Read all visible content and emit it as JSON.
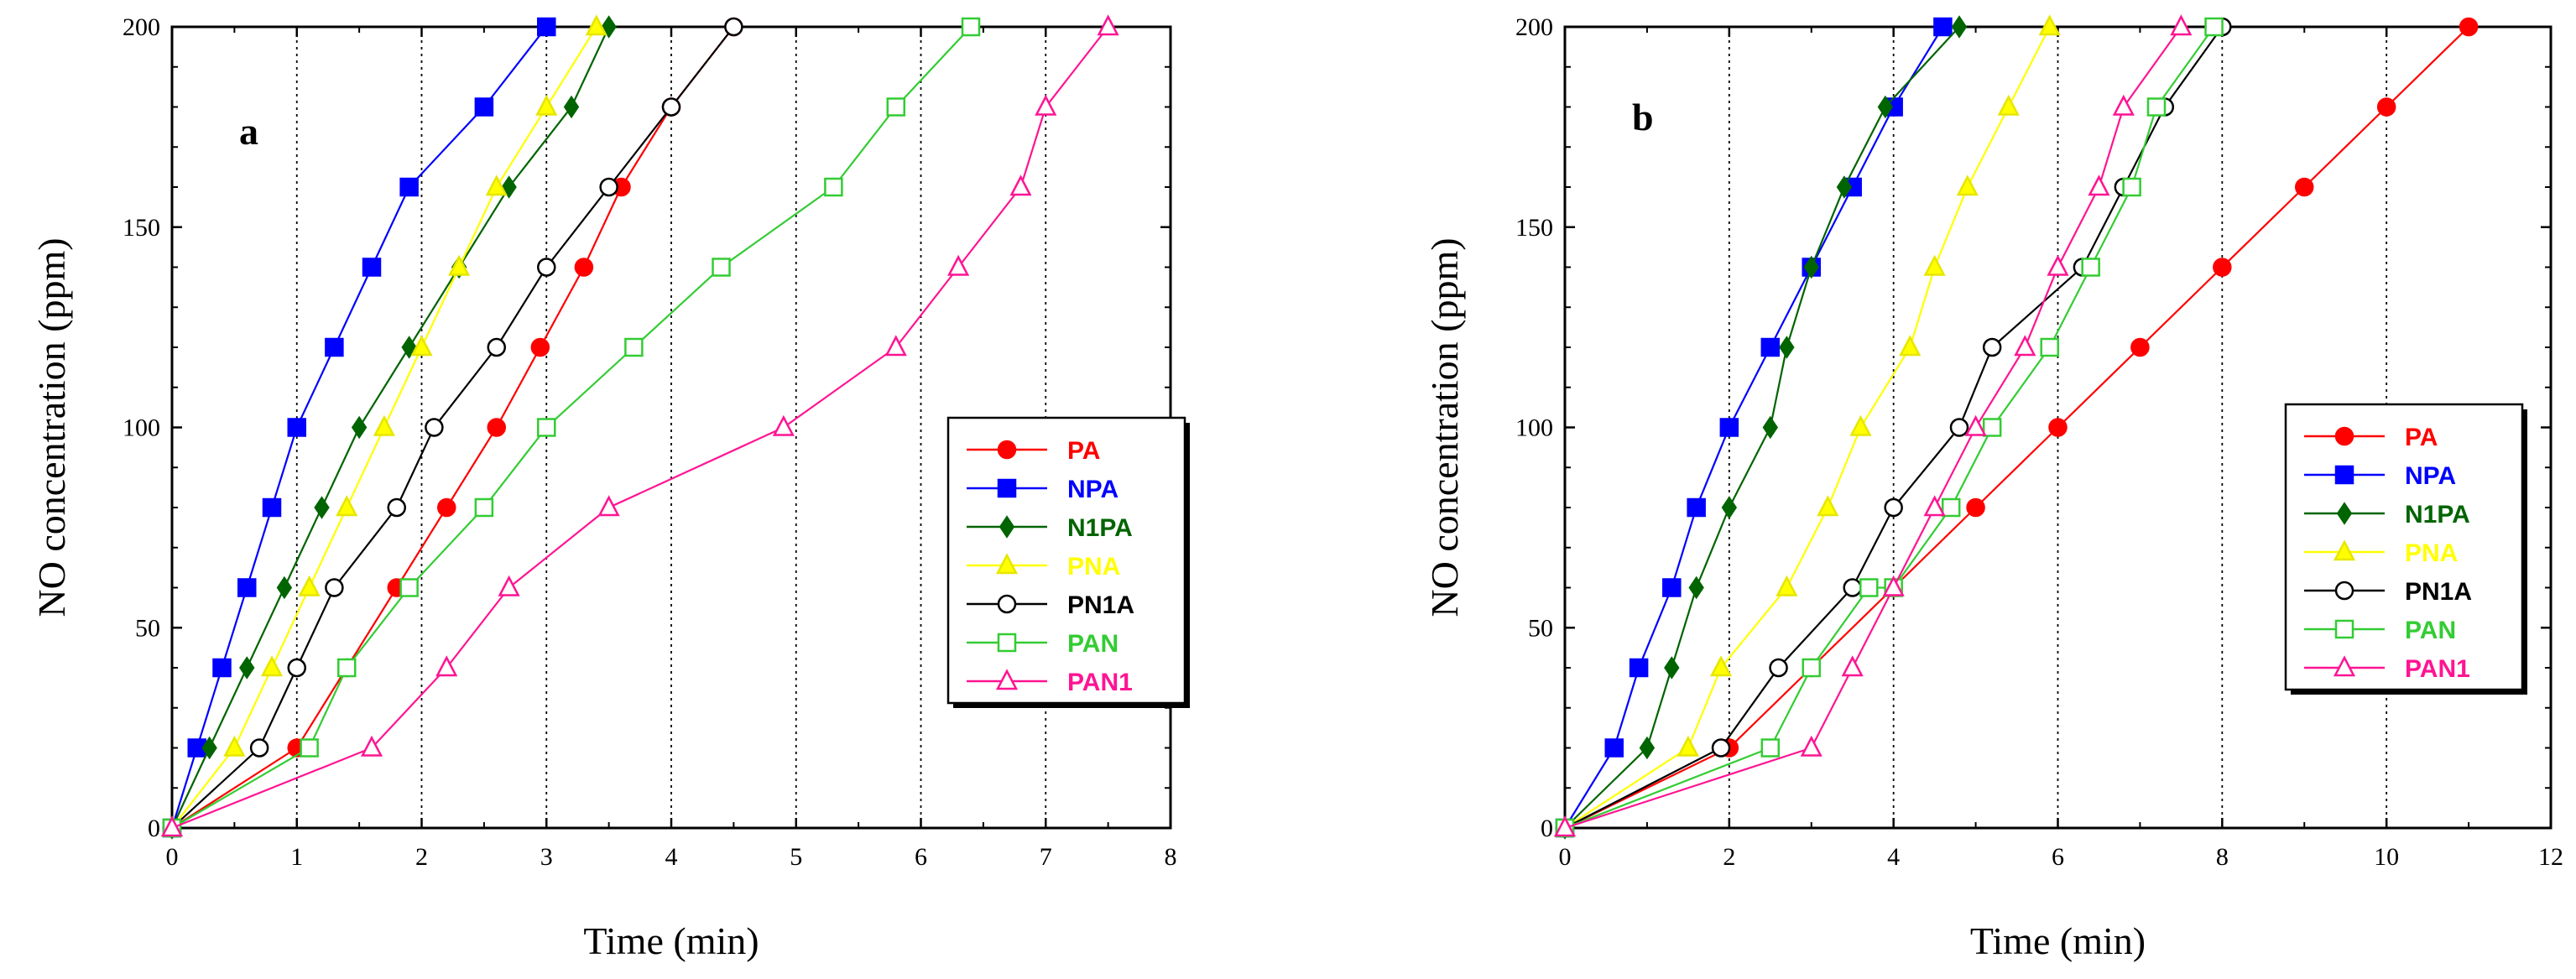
{
  "chart_data": [
    {
      "type": "line",
      "panel_label": "a",
      "xlabel": "Time (min)",
      "ylabel": "NO concentration (ppm)",
      "xlim": [
        0,
        8
      ],
      "ylim": [
        0,
        200
      ],
      "xticks": [
        0,
        1,
        2,
        3,
        4,
        5,
        6,
        7,
        8
      ],
      "yticks": [
        0,
        50,
        100,
        150,
        200
      ],
      "vertical_gridlines": [
        1,
        2,
        3,
        4,
        5,
        6,
        7
      ],
      "legend_position": "right",
      "series": [
        {
          "name": "PA",
          "color": "#ff0000",
          "marker": "filled-circle",
          "x": [
            0,
            1.0,
            1.4,
            1.8,
            2.2,
            2.6,
            2.95,
            3.3,
            3.6,
            4.0,
            4.5
          ],
          "y": [
            0,
            20,
            40,
            60,
            80,
            100,
            120,
            140,
            160,
            180,
            200
          ]
        },
        {
          "name": "NPA",
          "color": "#0000ff",
          "marker": "filled-square",
          "x": [
            0,
            0.2,
            0.4,
            0.6,
            0.8,
            1.0,
            1.3,
            1.6,
            1.9,
            2.5,
            3.0
          ],
          "y": [
            0,
            20,
            40,
            60,
            80,
            100,
            120,
            140,
            160,
            180,
            200
          ]
        },
        {
          "name": "N1PA",
          "color": "#006400",
          "marker": "filled-diamond",
          "x": [
            0,
            0.3,
            0.6,
            0.9,
            1.2,
            1.5,
            1.9,
            2.3,
            2.7,
            3.2,
            3.5
          ],
          "y": [
            0,
            20,
            40,
            60,
            80,
            100,
            120,
            140,
            160,
            180,
            200
          ]
        },
        {
          "name": "PNA",
          "color": "#ffff00",
          "marker": "filled-triangle",
          "x": [
            0,
            0.5,
            0.8,
            1.1,
            1.4,
            1.7,
            2.0,
            2.3,
            2.6,
            3.0,
            3.4
          ],
          "y": [
            0,
            20,
            40,
            60,
            80,
            100,
            120,
            140,
            160,
            180,
            200
          ]
        },
        {
          "name": "PN1A",
          "color": "#000000",
          "marker": "open-circle",
          "x": [
            0,
            0.7,
            1.0,
            1.3,
            1.8,
            2.1,
            2.6,
            3.0,
            3.5,
            4.0,
            4.5
          ],
          "y": [
            0,
            20,
            40,
            60,
            80,
            100,
            120,
            140,
            160,
            180,
            200
          ]
        },
        {
          "name": "PAN",
          "color": "#33cc33",
          "marker": "open-square",
          "x": [
            0,
            1.1,
            1.4,
            1.9,
            2.5,
            3.0,
            3.7,
            4.4,
            5.3,
            5.8,
            6.4
          ],
          "y": [
            0,
            20,
            40,
            60,
            80,
            100,
            120,
            140,
            160,
            180,
            200
          ]
        },
        {
          "name": "PAN1",
          "color": "#ff1493",
          "marker": "open-triangle",
          "x": [
            0,
            1.6,
            2.2,
            2.7,
            3.5,
            4.9,
            5.8,
            6.3,
            6.8,
            7.0,
            7.5
          ],
          "y": [
            0,
            20,
            40,
            60,
            80,
            100,
            120,
            140,
            160,
            180,
            200
          ]
        }
      ]
    },
    {
      "type": "line",
      "panel_label": "b",
      "xlabel": "Time (min)",
      "ylabel": "NO concentration (ppm)",
      "xlim": [
        0,
        12
      ],
      "ylim": [
        0,
        200
      ],
      "xticks": [
        0,
        2,
        4,
        6,
        8,
        10,
        12
      ],
      "yticks": [
        0,
        50,
        100,
        150,
        200
      ],
      "vertical_gridlines": [
        2,
        4,
        6,
        8,
        10
      ],
      "legend_position": "right",
      "series": [
        {
          "name": "PA",
          "color": "#ff0000",
          "marker": "filled-circle",
          "x": [
            0,
            2.0,
            3.0,
            4.0,
            5.0,
            6.0,
            7.0,
            8.0,
            9.0,
            10.0,
            11.0
          ],
          "y": [
            0,
            20,
            40,
            60,
            80,
            100,
            120,
            140,
            160,
            180,
            200
          ]
        },
        {
          "name": "NPA",
          "color": "#0000ff",
          "marker": "filled-square",
          "x": [
            0,
            0.6,
            0.9,
            1.3,
            1.6,
            2.0,
            2.5,
            3.0,
            3.5,
            4.0,
            4.6
          ],
          "y": [
            0,
            20,
            40,
            60,
            80,
            100,
            120,
            140,
            160,
            180,
            200
          ]
        },
        {
          "name": "N1PA",
          "color": "#006400",
          "marker": "filled-diamond",
          "x": [
            0,
            1.0,
            1.3,
            1.6,
            2.0,
            2.5,
            2.7,
            3.0,
            3.4,
            3.9,
            4.8
          ],
          "y": [
            0,
            20,
            40,
            60,
            80,
            100,
            120,
            140,
            160,
            180,
            200
          ]
        },
        {
          "name": "PNA",
          "color": "#ffff00",
          "marker": "filled-triangle",
          "x": [
            0,
            1.5,
            1.9,
            2.7,
            3.2,
            3.6,
            4.2,
            4.5,
            4.9,
            5.4,
            5.9
          ],
          "y": [
            0,
            20,
            40,
            60,
            80,
            100,
            120,
            140,
            160,
            180,
            200
          ]
        },
        {
          "name": "PN1A",
          "color": "#000000",
          "marker": "open-circle",
          "x": [
            0,
            1.9,
            2.6,
            3.5,
            4.0,
            4.8,
            5.2,
            6.3,
            6.8,
            7.3,
            8.0
          ],
          "y": [
            0,
            20,
            40,
            60,
            80,
            100,
            120,
            140,
            160,
            180,
            200
          ]
        },
        {
          "name": "PAN",
          "color": "#33cc33",
          "marker": "open-square",
          "x": [
            0,
            2.5,
            3.0,
            3.7,
            4.0,
            4.7,
            5.2,
            5.9,
            6.4,
            6.9,
            7.2,
            7.9
          ],
          "y": [
            0,
            20,
            40,
            60,
            60,
            80,
            100,
            120,
            140,
            160,
            180,
            200
          ]
        },
        {
          "name": "PAN1",
          "color": "#ff1493",
          "marker": "open-triangle",
          "x": [
            0,
            3.0,
            3.5,
            4.0,
            4.5,
            5.0,
            5.6,
            6.0,
            6.5,
            6.8,
            7.5
          ],
          "y": [
            0,
            20,
            40,
            60,
            80,
            100,
            120,
            140,
            160,
            180,
            200
          ]
        }
      ]
    }
  ]
}
